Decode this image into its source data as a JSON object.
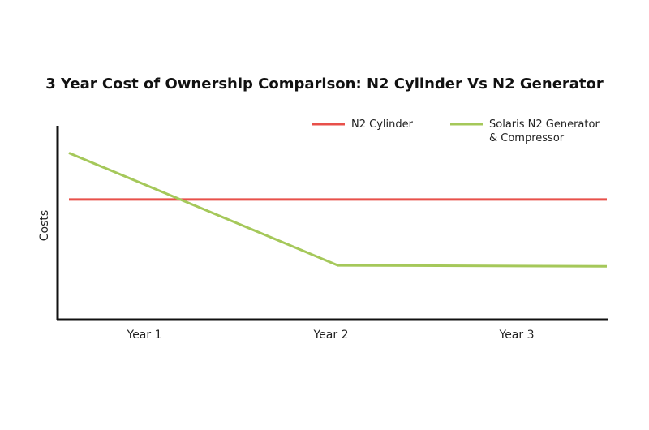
{
  "chart_data": {
    "type": "line",
    "title": "3 Year Cost of Ownership Comparison: N2 Cylinder Vs N2 Generator",
    "y_label": "Costs",
    "categories": [
      "Year 1",
      "Year 2",
      "Year 3"
    ],
    "series": [
      {
        "name": "N2 Cylinder",
        "color": "#e8504a",
        "values": [
          62,
          62,
          62
        ]
      },
      {
        "name": "Solaris N2 Generator & Compressor",
        "color": "#a5c85a",
        "values": [
          86,
          28,
          27.5
        ]
      }
    ],
    "ylim": [
      0,
      100
    ]
  }
}
